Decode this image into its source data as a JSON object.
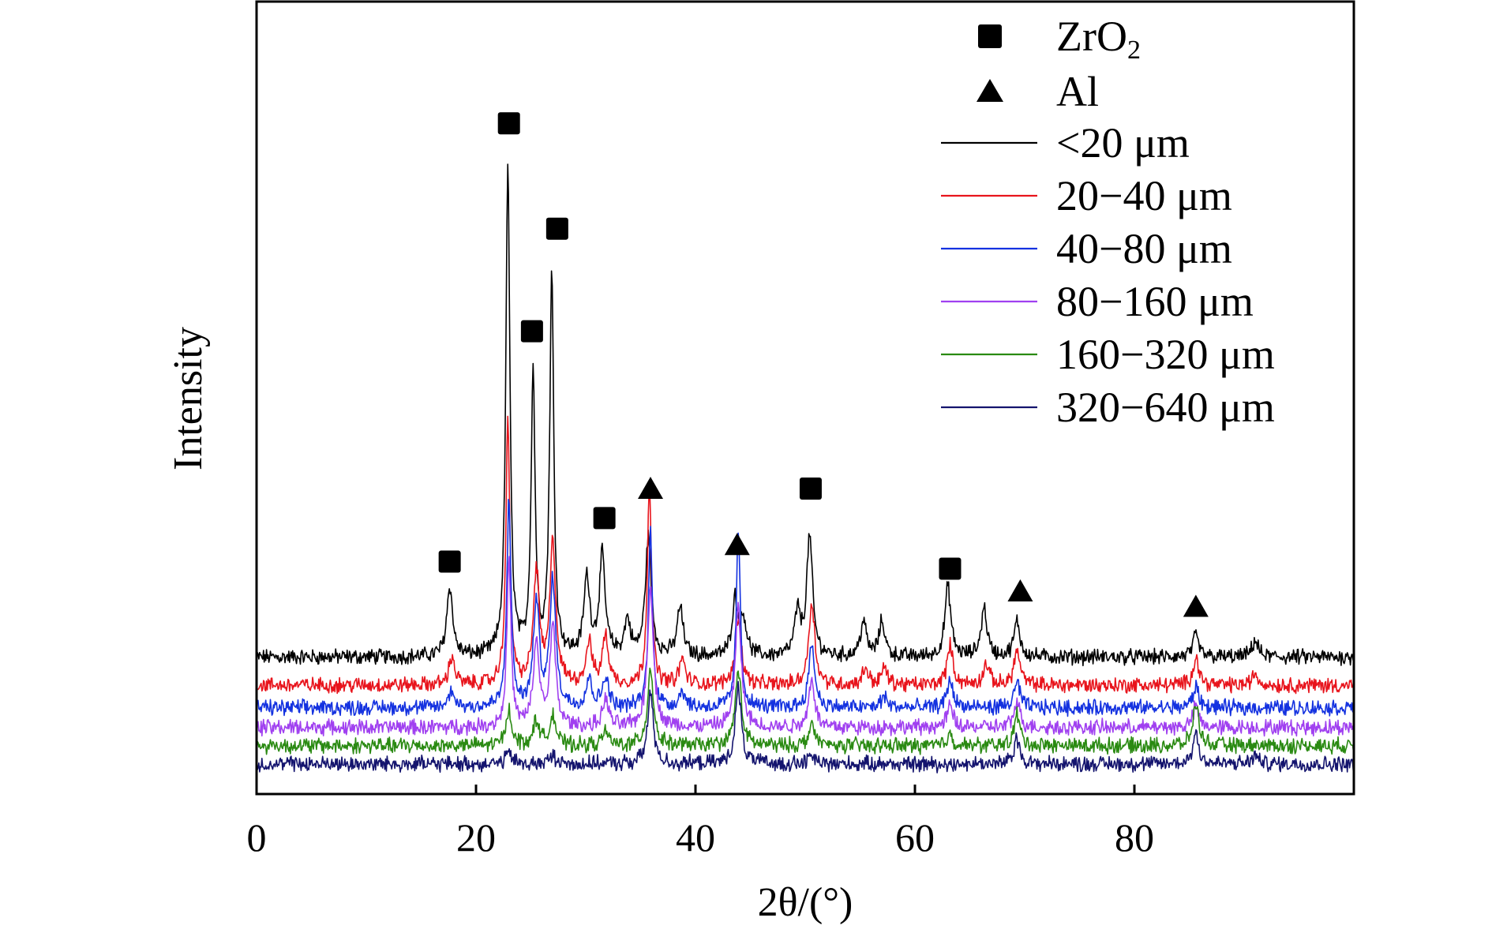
{
  "chart_data": {
    "type": "line",
    "xlabel": "2θ/(°)",
    "ylabel": "Intensity",
    "xlim": [
      0,
      100
    ],
    "x_ticks": [
      0,
      20,
      40,
      60,
      80
    ],
    "x_tick_labels": [
      "0",
      "20",
      "40",
      "60",
      "80"
    ],
    "y_ticks_shown": false,
    "grid": false,
    "legend_position": "top-right",
    "markers": [
      {
        "name": "ZrO2",
        "label_main": "ZrO",
        "label_sub": "2",
        "symbol": "square"
      },
      {
        "name": "Al",
        "label_main": "Al",
        "label_sub": "",
        "symbol": "triangle"
      }
    ],
    "series": [
      {
        "name": "<20 μm",
        "color": "#000000",
        "baseline": 0.8,
        "peaks": [
          [
            17.6,
            0.5
          ],
          [
            22.9,
            3.5
          ],
          [
            25.2,
            2.0
          ],
          [
            26.9,
            2.7
          ],
          [
            30.1,
            0.55
          ],
          [
            31.5,
            0.7
          ],
          [
            33.8,
            0.25
          ],
          [
            35.7,
            0.85
          ],
          [
            38.6,
            0.35
          ],
          [
            43.6,
            0.4
          ],
          [
            44.4,
            0.25
          ],
          [
            49.3,
            0.3
          ],
          [
            50.4,
            0.85
          ],
          [
            55.3,
            0.25
          ],
          [
            57.0,
            0.25
          ],
          [
            63.0,
            0.5
          ],
          [
            66.3,
            0.35
          ],
          [
            69.3,
            0.25
          ],
          [
            85.6,
            0.15
          ],
          [
            91.0,
            0.12
          ]
        ]
      },
      {
        "name": "20−40 μm",
        "color": "#e8141c",
        "baseline": 0.6,
        "peaks": [
          [
            17.8,
            0.2
          ],
          [
            22.9,
            1.85
          ],
          [
            25.5,
            0.8
          ],
          [
            27.0,
            1.0
          ],
          [
            30.3,
            0.3
          ],
          [
            31.8,
            0.35
          ],
          [
            35.8,
            1.45
          ],
          [
            38.8,
            0.18
          ],
          [
            43.9,
            0.5
          ],
          [
            50.6,
            0.6
          ],
          [
            55.5,
            0.12
          ],
          [
            57.2,
            0.12
          ],
          [
            63.2,
            0.28
          ],
          [
            66.5,
            0.15
          ],
          [
            69.3,
            0.25
          ],
          [
            85.6,
            0.2
          ],
          [
            91.0,
            0.08
          ]
        ]
      },
      {
        "name": "40−80 μm",
        "color": "#1432e0",
        "baseline": 0.44,
        "peaks": [
          [
            17.8,
            0.12
          ],
          [
            23.0,
            1.5
          ],
          [
            25.5,
            0.75
          ],
          [
            27.0,
            0.9
          ],
          [
            30.3,
            0.2
          ],
          [
            31.8,
            0.22
          ],
          [
            35.9,
            1.25
          ],
          [
            38.8,
            0.12
          ],
          [
            43.9,
            1.25
          ],
          [
            50.6,
            0.45
          ],
          [
            57.2,
            0.08
          ],
          [
            63.2,
            0.2
          ],
          [
            69.3,
            0.18
          ],
          [
            85.6,
            0.15
          ]
        ]
      },
      {
        "name": "80−160 μm",
        "color": "#a040f0",
        "baseline": 0.3,
        "peaks": [
          [
            23.0,
            1.2
          ],
          [
            25.5,
            0.6
          ],
          [
            27.0,
            0.7
          ],
          [
            31.8,
            0.2
          ],
          [
            35.9,
            1.0
          ],
          [
            43.9,
            0.85
          ],
          [
            50.6,
            0.35
          ],
          [
            63.2,
            0.15
          ],
          [
            69.3,
            0.18
          ],
          [
            85.6,
            0.15
          ]
        ]
      },
      {
        "name": "160−320 μm",
        "color": "#2a8a12",
        "baseline": 0.17,
        "peaks": [
          [
            23.0,
            0.25
          ],
          [
            25.5,
            0.18
          ],
          [
            27.0,
            0.22
          ],
          [
            31.8,
            0.1
          ],
          [
            35.9,
            0.55
          ],
          [
            43.9,
            0.55
          ],
          [
            50.6,
            0.15
          ],
          [
            63.2,
            0.08
          ],
          [
            69.3,
            0.22
          ],
          [
            85.6,
            0.3
          ]
        ]
      },
      {
        "name": "320−640 μm",
        "color": "#14146e",
        "baseline": 0.04,
        "peaks": [
          [
            23.0,
            0.08
          ],
          [
            27.0,
            0.06
          ],
          [
            35.9,
            0.5
          ],
          [
            43.9,
            0.55
          ],
          [
            50.6,
            0.06
          ],
          [
            69.3,
            0.18
          ],
          [
            85.6,
            0.22
          ],
          [
            91.0,
            0.06
          ]
        ]
      }
    ],
    "peak_markers": [
      {
        "symbol": "square",
        "x": 17.6,
        "y": 1.48
      },
      {
        "symbol": "square",
        "x": 23.0,
        "y": 4.6
      },
      {
        "symbol": "square",
        "x": 25.1,
        "y": 3.12
      },
      {
        "symbol": "square",
        "x": 27.4,
        "y": 3.85
      },
      {
        "symbol": "square",
        "x": 31.7,
        "y": 1.79
      },
      {
        "symbol": "triangle",
        "x": 35.9,
        "y": 2.0
      },
      {
        "symbol": "triangle",
        "x": 43.8,
        "y": 1.6
      },
      {
        "symbol": "square",
        "x": 50.5,
        "y": 2.0
      },
      {
        "symbol": "square",
        "x": 63.2,
        "y": 1.43
      },
      {
        "symbol": "triangle",
        "x": 69.6,
        "y": 1.27
      },
      {
        "symbol": "triangle",
        "x": 85.6,
        "y": 1.16
      }
    ]
  }
}
